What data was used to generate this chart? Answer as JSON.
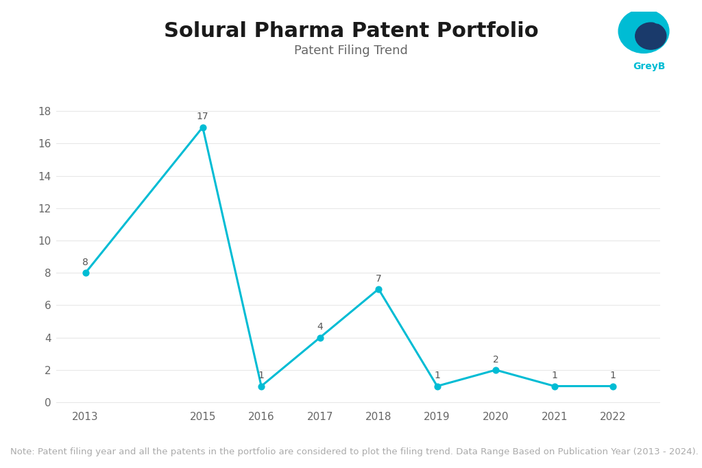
{
  "title": "Solural Pharma Patent Portfolio",
  "subtitle": "Patent Filing Trend",
  "x_values": [
    2013,
    2015,
    2016,
    2017,
    2018,
    2019,
    2020,
    2021,
    2022
  ],
  "y_values": [
    8,
    17,
    1,
    4,
    7,
    1,
    2,
    1,
    1
  ],
  "labels": [
    8,
    17,
    1,
    4,
    7,
    1,
    2,
    1,
    1
  ],
  "line_color": "#00BCD4",
  "marker_color": "#00BCD4",
  "background_color": "#FFFFFF",
  "title_fontsize": 22,
  "subtitle_fontsize": 13,
  "label_fontsize": 10,
  "tick_fontsize": 11,
  "note_text": "Note: Patent filing year and all the patents in the portfolio are considered to plot the filing trend. Data Range Based on Publication Year (2013 - 2024).",
  "note_fontsize": 9.5,
  "note_color": "#AAAAAA",
  "xlim": [
    2012.5,
    2022.8
  ],
  "ylim": [
    -0.3,
    18.5
  ],
  "yticks": [
    0,
    2,
    4,
    6,
    8,
    10,
    12,
    14,
    16,
    18
  ],
  "xticks": [
    2013,
    2015,
    2016,
    2017,
    2018,
    2019,
    2020,
    2021,
    2022
  ],
  "grid_color": "#E8E8E8",
  "logo_teal": "#00BCD4",
  "logo_dark": "#1A3A6B",
  "logo_text_color": "#00BCD4"
}
